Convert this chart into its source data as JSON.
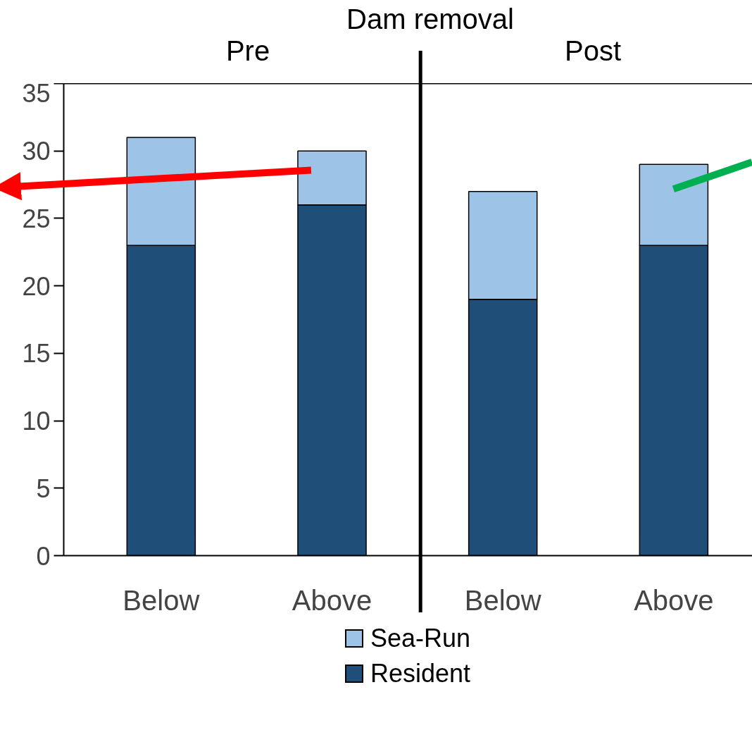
{
  "chart_data": {
    "type": "bar",
    "stacked": true,
    "categories": [
      "Below",
      "Above",
      "Below",
      "Above"
    ],
    "series": [
      {
        "name": "Resident",
        "color": "#1f4e79",
        "values": [
          23,
          26,
          19,
          23
        ]
      },
      {
        "name": "Sea-Run",
        "color": "#9dc3e6",
        "values": [
          8,
          4,
          8,
          6
        ]
      }
    ],
    "ylim": [
      0,
      35
    ],
    "yticks": [
      0,
      5,
      10,
      15,
      20,
      25,
      30,
      35
    ],
    "grid": false,
    "legend": "bottom",
    "annotations": [
      "Dam removal",
      "Pre",
      "Post"
    ]
  }
}
